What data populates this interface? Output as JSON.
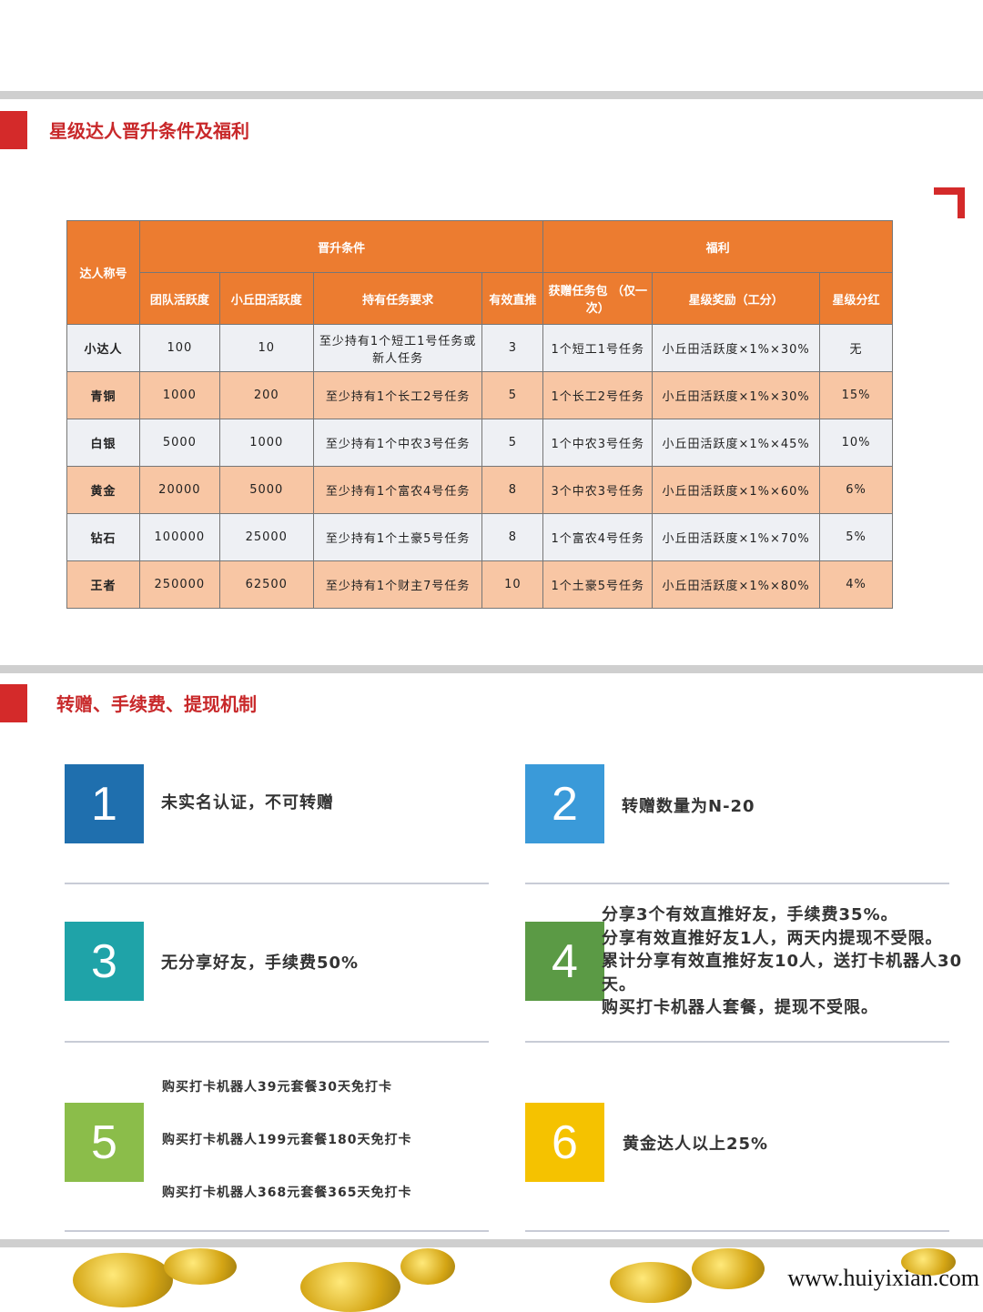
{
  "section1": {
    "title": "星级达人晋升条件及福利"
  },
  "table": {
    "h_name": "达人称号",
    "h_promo": "晋升条件",
    "h_benefit": "福利",
    "cols": [
      "团队活跃度",
      "小丘田活跃度",
      "持有任务要求",
      "有效直推",
      "获赠任务包  （仅一次）",
      "星级奖励（工分）",
      "星级分红"
    ],
    "rows": [
      [
        "小达人",
        "100",
        "10",
        "至少持有1个短工1号任务或新人任务",
        "3",
        "1个短工1号任务",
        "小丘田活跃度×1%×30%",
        "无"
      ],
      [
        "青铜",
        "1000",
        "200",
        "至少持有1个长工2号任务",
        "5",
        "1个长工2号任务",
        "小丘田活跃度×1%×30%",
        "15%"
      ],
      [
        "白银",
        "5000",
        "1000",
        "至少持有1个中农3号任务",
        "5",
        "1个中农3号任务",
        "小丘田活跃度×1%×45%",
        "10%"
      ],
      [
        "黄金",
        "20000",
        "5000",
        "至少持有1个富农4号任务",
        "8",
        "3个中农3号任务",
        "小丘田活跃度×1%×60%",
        "6%"
      ],
      [
        "钻石",
        "100000",
        "25000",
        "至少持有1个土豪5号任务",
        "8",
        "1个富农4号任务",
        "小丘田活跃度×1%×70%",
        "5%"
      ],
      [
        "王者",
        "250000",
        "62500",
        "至少持有1个财主7号任务",
        "10",
        "1个土豪5号任务",
        "小丘田活跃度×1%×80%",
        "4%"
      ]
    ]
  },
  "section2": {
    "title": "转赠、手续费、提现机制"
  },
  "items": [
    {
      "num": "1",
      "color": "#1f6fae",
      "lines": [
        "未实名认证，不可转赠"
      ]
    },
    {
      "num": "2",
      "color": "#3a9ad9",
      "lines": [
        "转赠数量为N-20"
      ]
    },
    {
      "num": "3",
      "color": "#1fa3a8",
      "lines": [
        "无分享好友，手续费50%"
      ]
    },
    {
      "num": "4",
      "color": "#5b9a45",
      "lines": [
        "分享3个有效直推好友，手续费35%。",
        "分享有效直推好友1人，两天内提现不受限。",
        "累计分享有效直推好友10人，送打卡机器人30天。",
        "购买打卡机器人套餐，提现不受限。"
      ]
    },
    {
      "num": "5",
      "color": "#8bbd4a",
      "lines": [
        "购买打卡机器人39元套餐30天免打卡",
        "购买打卡机器人199元套餐180天免打卡",
        "购买打卡机器人368元套餐365天免打卡"
      ]
    },
    {
      "num": "6",
      "color": "#f5c200",
      "lines": [
        "黄金达人以上25%"
      ]
    }
  ],
  "watermark": "www.huiyixian.com"
}
